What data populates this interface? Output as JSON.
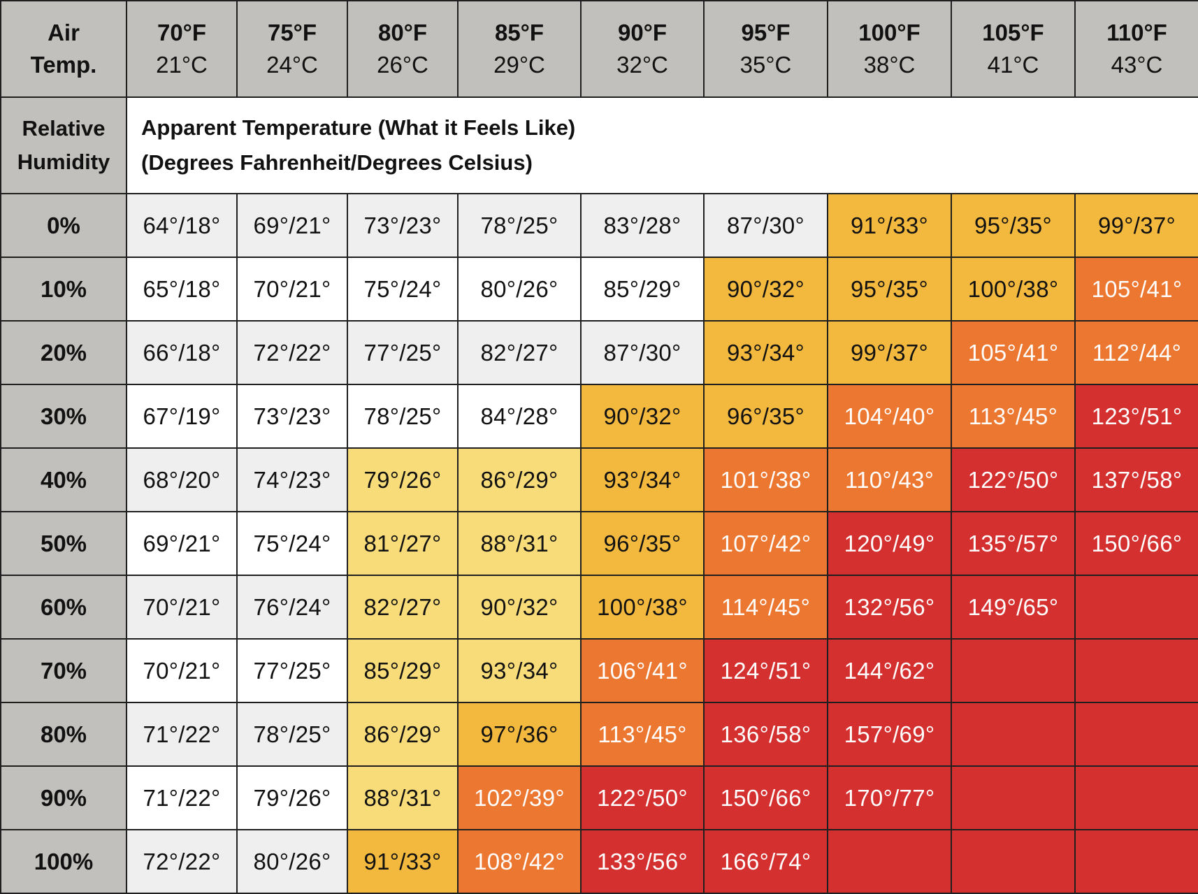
{
  "header": {
    "corner_label_line1": "Air",
    "corner_label_line2": "Temp.",
    "temps": [
      {
        "f": "70°F",
        "c": "21°C"
      },
      {
        "f": "75°F",
        "c": "24°C"
      },
      {
        "f": "80°F",
        "c": "26°C"
      },
      {
        "f": "85°F",
        "c": "29°C"
      },
      {
        "f": "90°F",
        "c": "32°C"
      },
      {
        "f": "95°F",
        "c": "35°C"
      },
      {
        "f": "100°F",
        "c": "38°C"
      },
      {
        "f": "105°F",
        "c": "41°C"
      },
      {
        "f": "110°F",
        "c": "43°C"
      }
    ]
  },
  "subheader": {
    "rh_label_line1": "Relative",
    "rh_label_line2": "Humidity",
    "title_line1": "Apparent Temperature (What it Feels Like)",
    "title_line2": "(Degrees Fahrenheit/Degrees Celsius)"
  },
  "colors": {
    "header_gray": "#c1c0bc",
    "stripe_light": "#efefef",
    "white": "#ffffff",
    "light_yellow": "#f8dc79",
    "yellow_orange": "#f3b93f",
    "orange": "#ec7731",
    "red": "#d3302f"
  },
  "rows": [
    {
      "humidity": "0%",
      "cells": [
        {
          "v": "64°/18°",
          "c": "g"
        },
        {
          "v": "69°/21°",
          "c": "g"
        },
        {
          "v": "73°/23°",
          "c": "g"
        },
        {
          "v": "78°/25°",
          "c": "g"
        },
        {
          "v": "83°/28°",
          "c": "g"
        },
        {
          "v": "87°/30°",
          "c": "g"
        },
        {
          "v": "91°/33°",
          "c": "Y"
        },
        {
          "v": "95°/35°",
          "c": "Y"
        },
        {
          "v": "99°/37°",
          "c": "Y"
        }
      ]
    },
    {
      "humidity": "10%",
      "cells": [
        {
          "v": "65°/18°",
          "c": "w"
        },
        {
          "v": "70°/21°",
          "c": "w"
        },
        {
          "v": "75°/24°",
          "c": "w"
        },
        {
          "v": "80°/26°",
          "c": "w"
        },
        {
          "v": "85°/29°",
          "c": "w"
        },
        {
          "v": "90°/32°",
          "c": "Y"
        },
        {
          "v": "95°/35°",
          "c": "Y"
        },
        {
          "v": "100°/38°",
          "c": "Y"
        },
        {
          "v": "105°/41°",
          "c": "O"
        }
      ]
    },
    {
      "humidity": "20%",
      "cells": [
        {
          "v": "66°/18°",
          "c": "g"
        },
        {
          "v": "72°/22°",
          "c": "g"
        },
        {
          "v": "77°/25°",
          "c": "g"
        },
        {
          "v": "82°/27°",
          "c": "g"
        },
        {
          "v": "87°/30°",
          "c": "g"
        },
        {
          "v": "93°/34°",
          "c": "Y"
        },
        {
          "v": "99°/37°",
          "c": "Y"
        },
        {
          "v": "105°/41°",
          "c": "O"
        },
        {
          "v": "112°/44°",
          "c": "O"
        }
      ]
    },
    {
      "humidity": "30%",
      "cells": [
        {
          "v": "67°/19°",
          "c": "w"
        },
        {
          "v": "73°/23°",
          "c": "w"
        },
        {
          "v": "78°/25°",
          "c": "w"
        },
        {
          "v": "84°/28°",
          "c": "w"
        },
        {
          "v": "90°/32°",
          "c": "Y"
        },
        {
          "v": "96°/35°",
          "c": "Y"
        },
        {
          "v": "104°/40°",
          "c": "O"
        },
        {
          "v": "113°/45°",
          "c": "O"
        },
        {
          "v": "123°/51°",
          "c": "R"
        }
      ]
    },
    {
      "humidity": "40%",
      "cells": [
        {
          "v": "68°/20°",
          "c": "g"
        },
        {
          "v": "74°/23°",
          "c": "g"
        },
        {
          "v": "79°/26°",
          "c": "y"
        },
        {
          "v": "86°/29°",
          "c": "y"
        },
        {
          "v": "93°/34°",
          "c": "Y"
        },
        {
          "v": "101°/38°",
          "c": "O"
        },
        {
          "v": "110°/43°",
          "c": "O"
        },
        {
          "v": "122°/50°",
          "c": "R"
        },
        {
          "v": "137°/58°",
          "c": "R"
        }
      ]
    },
    {
      "humidity": "50%",
      "cells": [
        {
          "v": "69°/21°",
          "c": "w"
        },
        {
          "v": "75°/24°",
          "c": "w"
        },
        {
          "v": "81°/27°",
          "c": "y"
        },
        {
          "v": "88°/31°",
          "c": "y"
        },
        {
          "v": "96°/35°",
          "c": "Y"
        },
        {
          "v": "107°/42°",
          "c": "O"
        },
        {
          "v": "120°/49°",
          "c": "R"
        },
        {
          "v": "135°/57°",
          "c": "R"
        },
        {
          "v": "150°/66°",
          "c": "R"
        }
      ]
    },
    {
      "humidity": "60%",
      "cells": [
        {
          "v": "70°/21°",
          "c": "g"
        },
        {
          "v": "76°/24°",
          "c": "g"
        },
        {
          "v": "82°/27°",
          "c": "y"
        },
        {
          "v": "90°/32°",
          "c": "y"
        },
        {
          "v": "100°/38°",
          "c": "Y"
        },
        {
          "v": "114°/45°",
          "c": "O"
        },
        {
          "v": "132°/56°",
          "c": "R"
        },
        {
          "v": "149°/65°",
          "c": "R"
        },
        {
          "v": "",
          "c": "R"
        }
      ]
    },
    {
      "humidity": "70%",
      "cells": [
        {
          "v": "70°/21°",
          "c": "w"
        },
        {
          "v": "77°/25°",
          "c": "w"
        },
        {
          "v": "85°/29°",
          "c": "y"
        },
        {
          "v": "93°/34°",
          "c": "y"
        },
        {
          "v": "106°/41°",
          "c": "O"
        },
        {
          "v": "124°/51°",
          "c": "R"
        },
        {
          "v": "144°/62°",
          "c": "R"
        },
        {
          "v": "",
          "c": "R"
        },
        {
          "v": "",
          "c": "R"
        }
      ]
    },
    {
      "humidity": "80%",
      "cells": [
        {
          "v": "71°/22°",
          "c": "g"
        },
        {
          "v": "78°/25°",
          "c": "g"
        },
        {
          "v": "86°/29°",
          "c": "y"
        },
        {
          "v": "97°/36°",
          "c": "Y"
        },
        {
          "v": "113°/45°",
          "c": "O"
        },
        {
          "v": "136°/58°",
          "c": "R"
        },
        {
          "v": "157°/69°",
          "c": "R"
        },
        {
          "v": "",
          "c": "R"
        },
        {
          "v": "",
          "c": "R"
        }
      ]
    },
    {
      "humidity": "90%",
      "cells": [
        {
          "v": "71°/22°",
          "c": "w"
        },
        {
          "v": "79°/26°",
          "c": "w"
        },
        {
          "v": "88°/31°",
          "c": "y"
        },
        {
          "v": "102°/39°",
          "c": "O"
        },
        {
          "v": "122°/50°",
          "c": "R"
        },
        {
          "v": "150°/66°",
          "c": "R"
        },
        {
          "v": "170°/77°",
          "c": "R"
        },
        {
          "v": "",
          "c": "R"
        },
        {
          "v": "",
          "c": "R"
        }
      ]
    },
    {
      "humidity": "100%",
      "cells": [
        {
          "v": "72°/22°",
          "c": "g"
        },
        {
          "v": "80°/26°",
          "c": "g"
        },
        {
          "v": "91°/33°",
          "c": "Y"
        },
        {
          "v": "108°/42°",
          "c": "O"
        },
        {
          "v": "133°/56°",
          "c": "R"
        },
        {
          "v": "166°/74°",
          "c": "R"
        },
        {
          "v": "",
          "c": "R"
        },
        {
          "v": "",
          "c": "R"
        },
        {
          "v": "",
          "c": "R"
        }
      ]
    }
  ]
}
